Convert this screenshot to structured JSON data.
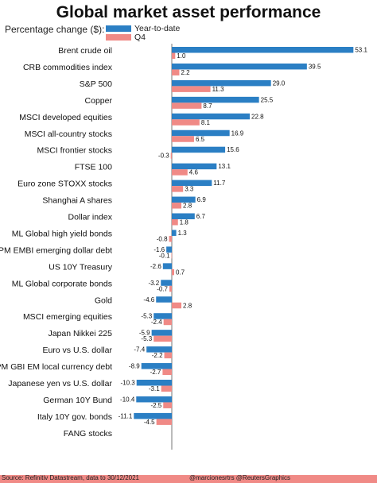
{
  "chart_data": {
    "type": "bar",
    "orientation": "horizontal",
    "title": "Global market asset performance",
    "subtitle": "Percentage change ($):",
    "legend_position": "top",
    "colors": {
      "ytd": "#2b7fc4",
      "q4": "#f08a86"
    },
    "categories": [
      "Brent crude oil",
      "CRB commodities index",
      "S&P 500",
      "Copper",
      "MSCI developed equities",
      "MSCI all-country stocks",
      "MSCI frontier stocks",
      "FTSE 100",
      "Euro zone STOXX stocks",
      "Shanghai A shares",
      "Dollar index",
      "ML Global high yield bonds",
      "JPM EMBI emerging dollar debt",
      "US 10Y Treasury",
      "ML Global corporate bonds",
      "Gold",
      "MSCI emerging equities",
      "Japan Nikkei 225",
      "Euro vs U.S. dollar",
      "JPM GBI EM local currency debt",
      "Japanese yen vs U.S. dollar",
      "German 10Y Bund",
      "Italy 10Y gov. bonds",
      "FANG stocks"
    ],
    "series": [
      {
        "name": "Year-to-date",
        "values": [
          53.1,
          39.5,
          29.0,
          25.5,
          22.8,
          16.9,
          15.6,
          13.1,
          11.7,
          6.9,
          6.7,
          1.3,
          -1.6,
          -2.6,
          -3.2,
          -4.6,
          -5.3,
          -5.9,
          -7.4,
          -8.9,
          -10.3,
          -10.4,
          -11.1,
          null
        ]
      },
      {
        "name": "Q4",
        "values": [
          1.0,
          2.2,
          11.3,
          8.7,
          8.1,
          6.5,
          -0.3,
          4.6,
          3.3,
          2.8,
          1.8,
          -0.8,
          -0.1,
          0.7,
          -0.7,
          2.8,
          -2.4,
          -5.3,
          -2.2,
          -2.7,
          -3.1,
          -2.5,
          -4.5,
          null
        ]
      }
    ],
    "value_labels": {
      "ytd": [
        "53.1",
        "39.5",
        "29.0",
        "25.5",
        "22.8",
        "16.9",
        "15.6",
        "13.1",
        "11.7",
        "6.9",
        "6.7",
        "1.3",
        "-1.6",
        "-2.6",
        "-3.2",
        "-4.6",
        "-5.3",
        "-5.9",
        "-7.4",
        "-8.9",
        "-10.3",
        "-10.4",
        "-11.1",
        ""
      ],
      "q4": [
        "1.0",
        "2.2",
        "11.3",
        "8.7",
        "8.1",
        "6.5",
        "-0.3",
        "4.6",
        "3.3",
        "2.8",
        "1.8",
        "-0.8",
        "-0.1",
        "0.7",
        "-0.7",
        "2.8",
        "-2.4",
        "-5.3",
        "-2.2",
        "-2.7",
        "-3.1",
        "-2.5",
        "-4.5",
        ""
      ]
    }
  },
  "footer": {
    "source": "Source: Refinitiv Datastream, data to 30/12/2021",
    "credit": "@marcionesrtrs @ReutersGraphics"
  }
}
